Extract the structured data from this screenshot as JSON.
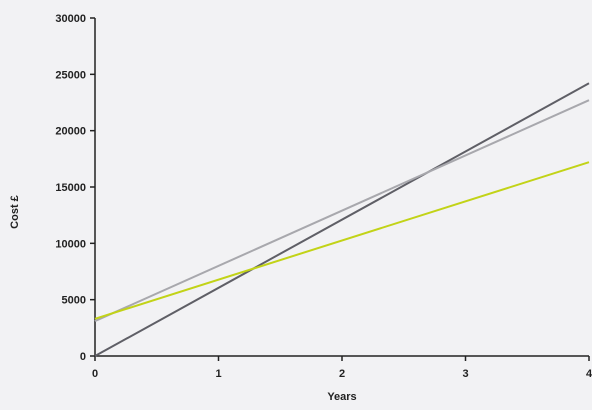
{
  "chart_data": {
    "type": "line",
    "title": "",
    "xlabel": "Years",
    "ylabel": "Cost £",
    "xlim": [
      0,
      4
    ],
    "ylim": [
      0,
      30000
    ],
    "x_ticks": [
      "0",
      "1",
      "2",
      "3",
      "4"
    ],
    "y_ticks": [
      "0",
      "5000",
      "10000",
      "15000",
      "20000",
      "25000",
      "30000"
    ],
    "grid": false,
    "legend": "none",
    "series": [
      {
        "color": "#5f5f66",
        "x": [
          0,
          4
        ],
        "y": [
          0,
          24200
        ]
      },
      {
        "color": "#a8a8ad",
        "x": [
          0,
          4
        ],
        "y": [
          3100,
          22700
        ]
      },
      {
        "color": "#c2d317",
        "x": [
          0,
          4
        ],
        "y": [
          3300,
          17200
        ]
      }
    ]
  }
}
